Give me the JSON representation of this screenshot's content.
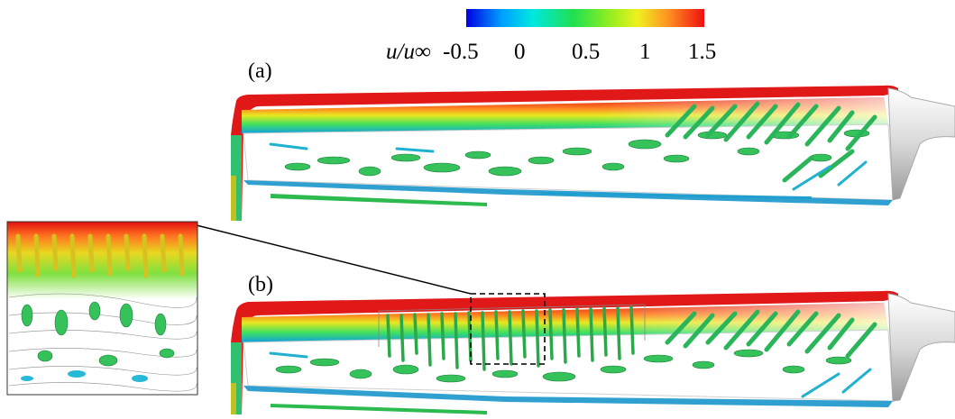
{
  "colorbar": {
    "variable": "u/u∞",
    "ticks": [
      "-0.5",
      "0",
      "0.5",
      "1",
      "1.5"
    ],
    "colors": [
      "#0000e0",
      "#00a0ff",
      "#00e8e0",
      "#20e050",
      "#90ee20",
      "#f0f020",
      "#ff9020",
      "#ee1010"
    ]
  },
  "panels": {
    "a": {
      "label": "(a)"
    },
    "b": {
      "label": "(b)"
    }
  }
}
